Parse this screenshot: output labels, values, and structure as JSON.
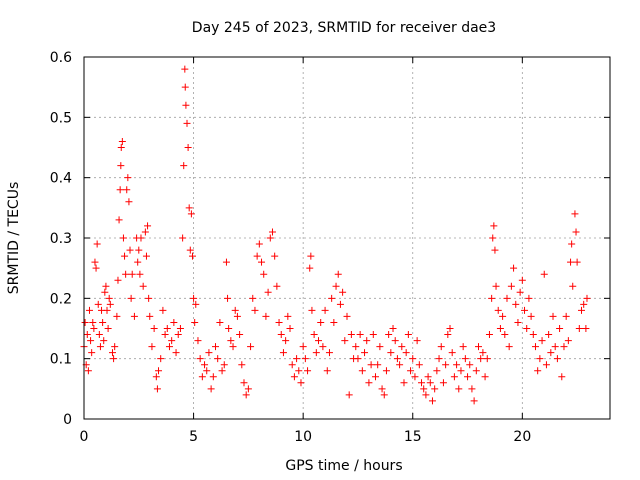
{
  "chart_data": {
    "type": "scatter",
    "title": "Day 245 of 2023, SRMTID for receiver dae3",
    "xlabel": "GPS time / hours",
    "ylabel": "SRMTID / TECUs",
    "xlim": [
      0,
      24
    ],
    "ylim": [
      0,
      0.6
    ],
    "xticks": [
      0,
      5,
      10,
      15,
      20
    ],
    "yticks": [
      0,
      0.1,
      0.2,
      0.3,
      0.4,
      0.5,
      0.6
    ],
    "grid": true,
    "marker": "+",
    "color": "#ff0000",
    "series": [
      {
        "name": "SRMTID",
        "points": [
          [
            0.0,
            0.12
          ],
          [
            0.05,
            0.16
          ],
          [
            0.1,
            0.09
          ],
          [
            0.15,
            0.14
          ],
          [
            0.2,
            0.08
          ],
          [
            0.25,
            0.18
          ],
          [
            0.3,
            0.13
          ],
          [
            0.35,
            0.11
          ],
          [
            0.4,
            0.16
          ],
          [
            0.45,
            0.15
          ],
          [
            0.5,
            0.26
          ],
          [
            0.55,
            0.25
          ],
          [
            0.6,
            0.29
          ],
          [
            0.65,
            0.19
          ],
          [
            0.7,
            0.14
          ],
          [
            0.75,
            0.12
          ],
          [
            0.8,
            0.18
          ],
          [
            0.85,
            0.16
          ],
          [
            0.9,
            0.13
          ],
          [
            0.95,
            0.21
          ],
          [
            1.0,
            0.22
          ],
          [
            1.05,
            0.18
          ],
          [
            1.1,
            0.15
          ],
          [
            1.15,
            0.2
          ],
          [
            1.2,
            0.19
          ],
          [
            1.3,
            0.11
          ],
          [
            1.35,
            0.1
          ],
          [
            1.4,
            0.12
          ],
          [
            1.5,
            0.17
          ],
          [
            1.55,
            0.23
          ],
          [
            1.6,
            0.33
          ],
          [
            1.65,
            0.38
          ],
          [
            1.68,
            0.42
          ],
          [
            1.7,
            0.45
          ],
          [
            1.75,
            0.46
          ],
          [
            1.8,
            0.3
          ],
          [
            1.85,
            0.27
          ],
          [
            1.9,
            0.24
          ],
          [
            1.95,
            0.38
          ],
          [
            2.0,
            0.4
          ],
          [
            2.05,
            0.36
          ],
          [
            2.1,
            0.28
          ],
          [
            2.15,
            0.2
          ],
          [
            2.2,
            0.24
          ],
          [
            2.3,
            0.17
          ],
          [
            2.4,
            0.3
          ],
          [
            2.45,
            0.26
          ],
          [
            2.5,
            0.28
          ],
          [
            2.55,
            0.24
          ],
          [
            2.6,
            0.3
          ],
          [
            2.7,
            0.22
          ],
          [
            2.8,
            0.31
          ],
          [
            2.85,
            0.27
          ],
          [
            2.9,
            0.32
          ],
          [
            2.95,
            0.2
          ],
          [
            3.0,
            0.17
          ],
          [
            3.1,
            0.12
          ],
          [
            3.2,
            0.15
          ],
          [
            3.3,
            0.07
          ],
          [
            3.35,
            0.05
          ],
          [
            3.4,
            0.08
          ],
          [
            3.5,
            0.1
          ],
          [
            3.6,
            0.18
          ],
          [
            3.7,
            0.14
          ],
          [
            3.8,
            0.15
          ],
          [
            3.9,
            0.12
          ],
          [
            4.0,
            0.13
          ],
          [
            4.1,
            0.16
          ],
          [
            4.2,
            0.11
          ],
          [
            4.3,
            0.14
          ],
          [
            4.4,
            0.15
          ],
          [
            4.5,
            0.3
          ],
          [
            4.55,
            0.42
          ],
          [
            4.6,
            0.58
          ],
          [
            4.62,
            0.55
          ],
          [
            4.65,
            0.52
          ],
          [
            4.7,
            0.49
          ],
          [
            4.75,
            0.45
          ],
          [
            4.8,
            0.35
          ],
          [
            4.85,
            0.28
          ],
          [
            4.9,
            0.34
          ],
          [
            4.95,
            0.27
          ],
          [
            5.0,
            0.2
          ],
          [
            5.05,
            0.16
          ],
          [
            5.1,
            0.19
          ],
          [
            5.2,
            0.13
          ],
          [
            5.3,
            0.1
          ],
          [
            5.4,
            0.07
          ],
          [
            5.5,
            0.09
          ],
          [
            5.6,
            0.08
          ],
          [
            5.7,
            0.11
          ],
          [
            5.8,
            0.05
          ],
          [
            5.9,
            0.07
          ],
          [
            6.0,
            0.12
          ],
          [
            6.1,
            0.1
          ],
          [
            6.2,
            0.16
          ],
          [
            6.3,
            0.08
          ],
          [
            6.4,
            0.09
          ],
          [
            6.5,
            0.26
          ],
          [
            6.55,
            0.2
          ],
          [
            6.6,
            0.15
          ],
          [
            6.7,
            0.13
          ],
          [
            6.8,
            0.12
          ],
          [
            6.9,
            0.18
          ],
          [
            7.0,
            0.17
          ],
          [
            7.1,
            0.14
          ],
          [
            7.2,
            0.09
          ],
          [
            7.3,
            0.06
          ],
          [
            7.4,
            0.04
          ],
          [
            7.5,
            0.05
          ],
          [
            7.6,
            0.12
          ],
          [
            7.7,
            0.2
          ],
          [
            7.8,
            0.18
          ],
          [
            7.9,
            0.27
          ],
          [
            8.0,
            0.29
          ],
          [
            8.1,
            0.26
          ],
          [
            8.2,
            0.24
          ],
          [
            8.3,
            0.17
          ],
          [
            8.4,
            0.21
          ],
          [
            8.5,
            0.3
          ],
          [
            8.6,
            0.31
          ],
          [
            8.7,
            0.27
          ],
          [
            8.8,
            0.22
          ],
          [
            8.9,
            0.16
          ],
          [
            9.0,
            0.14
          ],
          [
            9.1,
            0.11
          ],
          [
            9.2,
            0.13
          ],
          [
            9.3,
            0.17
          ],
          [
            9.4,
            0.15
          ],
          [
            9.5,
            0.09
          ],
          [
            9.6,
            0.07
          ],
          [
            9.7,
            0.1
          ],
          [
            9.8,
            0.08
          ],
          [
            9.9,
            0.06
          ],
          [
            10.0,
            0.12
          ],
          [
            10.1,
            0.1
          ],
          [
            10.2,
            0.08
          ],
          [
            10.3,
            0.25
          ],
          [
            10.35,
            0.27
          ],
          [
            10.4,
            0.18
          ],
          [
            10.5,
            0.14
          ],
          [
            10.6,
            0.11
          ],
          [
            10.7,
            0.13
          ],
          [
            10.8,
            0.16
          ],
          [
            10.9,
            0.12
          ],
          [
            11.0,
            0.18
          ],
          [
            11.1,
            0.08
          ],
          [
            11.2,
            0.11
          ],
          [
            11.3,
            0.2
          ],
          [
            11.4,
            0.16
          ],
          [
            11.5,
            0.22
          ],
          [
            11.6,
            0.24
          ],
          [
            11.7,
            0.19
          ],
          [
            11.8,
            0.21
          ],
          [
            11.9,
            0.13
          ],
          [
            12.0,
            0.17
          ],
          [
            12.1,
            0.04
          ],
          [
            12.2,
            0.14
          ],
          [
            12.3,
            0.1
          ],
          [
            12.4,
            0.12
          ],
          [
            12.5,
            0.1
          ],
          [
            12.6,
            0.14
          ],
          [
            12.7,
            0.08
          ],
          [
            12.8,
            0.11
          ],
          [
            12.9,
            0.13
          ],
          [
            13.0,
            0.06
          ],
          [
            13.1,
            0.09
          ],
          [
            13.2,
            0.14
          ],
          [
            13.3,
            0.07
          ],
          [
            13.4,
            0.09
          ],
          [
            13.5,
            0.12
          ],
          [
            13.6,
            0.05
          ],
          [
            13.7,
            0.04
          ],
          [
            13.8,
            0.08
          ],
          [
            13.9,
            0.14
          ],
          [
            14.0,
            0.11
          ],
          [
            14.1,
            0.15
          ],
          [
            14.2,
            0.13
          ],
          [
            14.3,
            0.1
          ],
          [
            14.4,
            0.09
          ],
          [
            14.5,
            0.12
          ],
          [
            14.6,
            0.06
          ],
          [
            14.7,
            0.11
          ],
          [
            14.8,
            0.14
          ],
          [
            14.9,
            0.08
          ],
          [
            15.0,
            0.1
          ],
          [
            15.1,
            0.07
          ],
          [
            15.2,
            0.13
          ],
          [
            15.3,
            0.09
          ],
          [
            15.4,
            0.06
          ],
          [
            15.5,
            0.05
          ],
          [
            15.6,
            0.04
          ],
          [
            15.7,
            0.07
          ],
          [
            15.8,
            0.06
          ],
          [
            15.9,
            0.03
          ],
          [
            16.0,
            0.05
          ],
          [
            16.1,
            0.08
          ],
          [
            16.2,
            0.1
          ],
          [
            16.3,
            0.12
          ],
          [
            16.4,
            0.06
          ],
          [
            16.5,
            0.09
          ],
          [
            16.6,
            0.14
          ],
          [
            16.7,
            0.15
          ],
          [
            16.8,
            0.11
          ],
          [
            16.9,
            0.07
          ],
          [
            17.0,
            0.09
          ],
          [
            17.1,
            0.05
          ],
          [
            17.2,
            0.08
          ],
          [
            17.3,
            0.12
          ],
          [
            17.4,
            0.1
          ],
          [
            17.5,
            0.07
          ],
          [
            17.6,
            0.09
          ],
          [
            17.7,
            0.05
          ],
          [
            17.8,
            0.03
          ],
          [
            17.9,
            0.08
          ],
          [
            18.0,
            0.12
          ],
          [
            18.1,
            0.1
          ],
          [
            18.2,
            0.11
          ],
          [
            18.3,
            0.07
          ],
          [
            18.4,
            0.1
          ],
          [
            18.5,
            0.14
          ],
          [
            18.6,
            0.2
          ],
          [
            18.65,
            0.3
          ],
          [
            18.7,
            0.32
          ],
          [
            18.75,
            0.28
          ],
          [
            18.8,
            0.22
          ],
          [
            18.9,
            0.18
          ],
          [
            19.0,
            0.15
          ],
          [
            19.1,
            0.17
          ],
          [
            19.2,
            0.14
          ],
          [
            19.3,
            0.2
          ],
          [
            19.4,
            0.12
          ],
          [
            19.5,
            0.22
          ],
          [
            19.6,
            0.25
          ],
          [
            19.7,
            0.19
          ],
          [
            19.8,
            0.16
          ],
          [
            19.9,
            0.21
          ],
          [
            20.0,
            0.23
          ],
          [
            20.1,
            0.18
          ],
          [
            20.2,
            0.15
          ],
          [
            20.3,
            0.2
          ],
          [
            20.4,
            0.17
          ],
          [
            20.5,
            0.14
          ],
          [
            20.6,
            0.12
          ],
          [
            20.7,
            0.08
          ],
          [
            20.8,
            0.1
          ],
          [
            20.9,
            0.13
          ],
          [
            21.0,
            0.24
          ],
          [
            21.1,
            0.09
          ],
          [
            21.2,
            0.14
          ],
          [
            21.3,
            0.11
          ],
          [
            21.4,
            0.17
          ],
          [
            21.5,
            0.12
          ],
          [
            21.6,
            0.1
          ],
          [
            21.7,
            0.15
          ],
          [
            21.8,
            0.07
          ],
          [
            21.9,
            0.12
          ],
          [
            22.0,
            0.17
          ],
          [
            22.1,
            0.13
          ],
          [
            22.2,
            0.26
          ],
          [
            22.25,
            0.29
          ],
          [
            22.3,
            0.22
          ],
          [
            22.4,
            0.34
          ],
          [
            22.45,
            0.31
          ],
          [
            22.5,
            0.26
          ],
          [
            22.6,
            0.15
          ],
          [
            22.7,
            0.18
          ],
          [
            22.8,
            0.19
          ],
          [
            22.9,
            0.15
          ],
          [
            22.95,
            0.2
          ]
        ]
      }
    ]
  }
}
